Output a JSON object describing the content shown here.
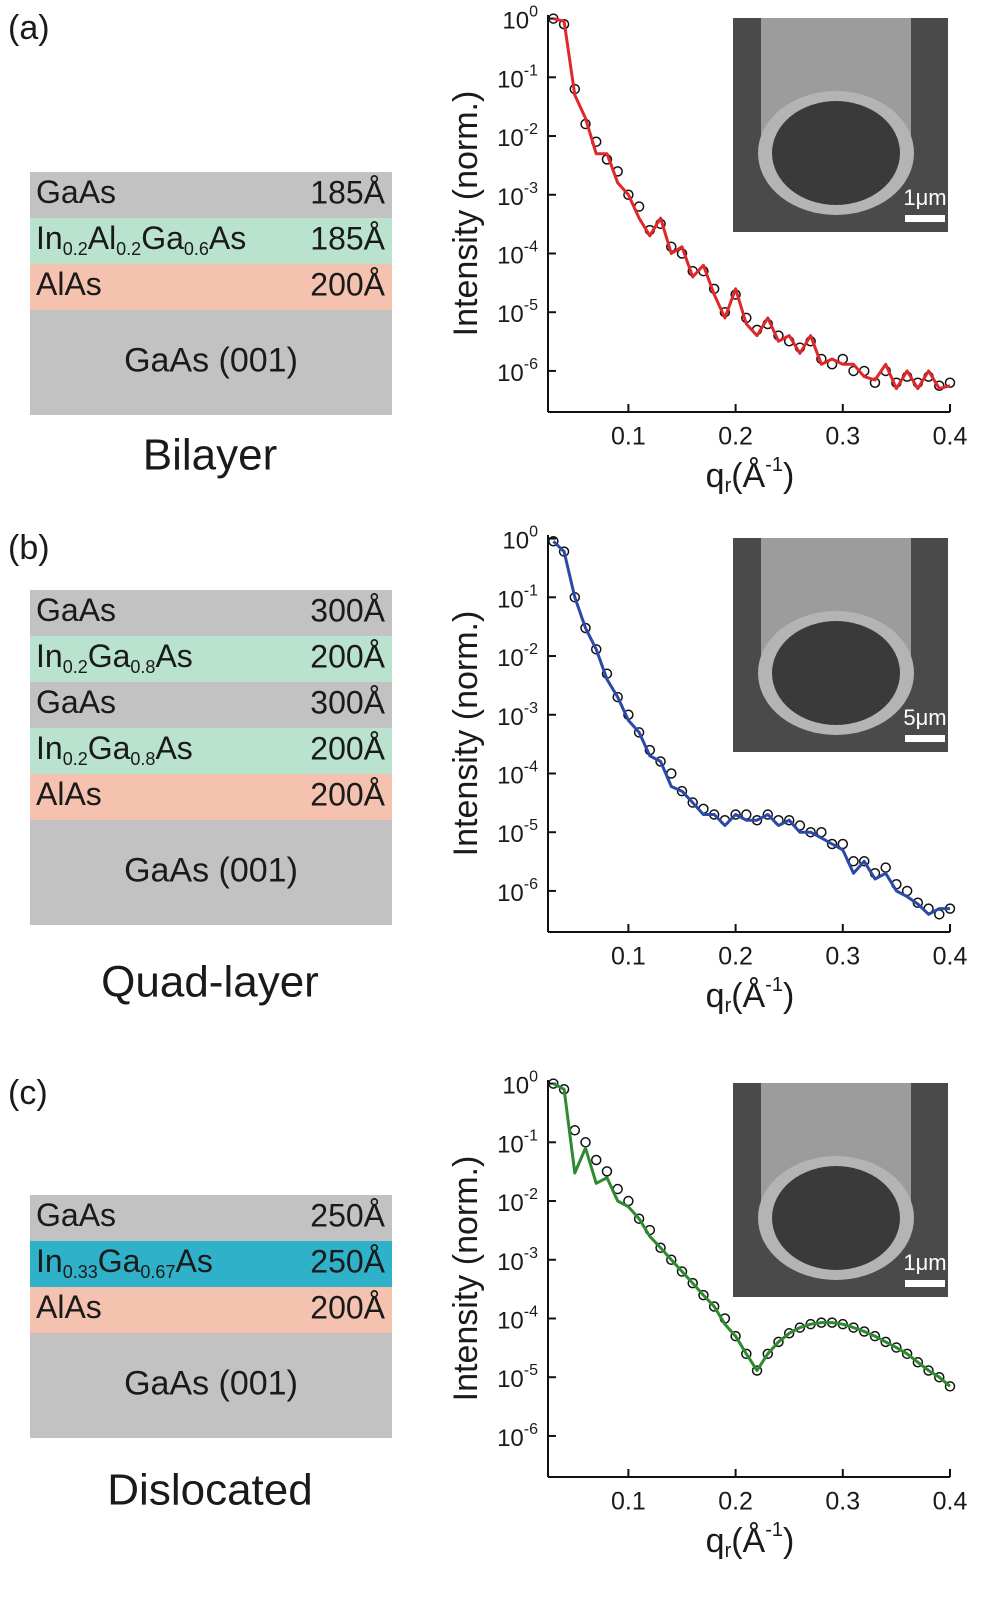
{
  "panels": [
    {
      "label": "(a)",
      "caption": "Bilayer",
      "layers": [
        {
          "name": [
            "GaAs"
          ],
          "thickness": "185Å",
          "color": "#c2c2c2"
        },
        {
          "name": [
            "In",
            "0.2",
            "Al",
            "0.2",
            "Ga",
            "0.6",
            "As"
          ],
          "thickness": "185Å",
          "color": "#b9e2cf"
        },
        {
          "name": [
            "AlAs"
          ],
          "thickness": "200Å",
          "color": "#f4c2ae"
        },
        {
          "name": [
            "GaAs (001)"
          ],
          "color": "#c2c2c2"
        }
      ]
    },
    {
      "label": "(b)",
      "caption": "Quad-layer",
      "layers": [
        {
          "name": [
            "GaAs"
          ],
          "thickness": "300Å",
          "color": "#c2c2c2"
        },
        {
          "name": [
            "In",
            "0.2",
            "Ga",
            "0.8",
            "As"
          ],
          "thickness": "200Å",
          "color": "#b9e2cf"
        },
        {
          "name": [
            "GaAs"
          ],
          "thickness": "300Å",
          "color": "#c2c2c2"
        },
        {
          "name": [
            "In",
            "0.2",
            "Ga",
            "0.8",
            "As"
          ],
          "thickness": "200Å",
          "color": "#b9e2cf"
        },
        {
          "name": [
            "AlAs"
          ],
          "thickness": "200Å",
          "color": "#f4c2ae"
        },
        {
          "name": [
            "GaAs (001)"
          ],
          "color": "#c2c2c2"
        }
      ]
    },
    {
      "label": "(c)",
      "caption": "Dislocated",
      "layers": [
        {
          "name": [
            "GaAs"
          ],
          "thickness": "250Å",
          "color": "#c2c2c2"
        },
        {
          "name": [
            "In",
            "0.33",
            "Ga",
            "0.67",
            "As"
          ],
          "thickness": "250Å",
          "color": "#2fb2c9"
        },
        {
          "name": [
            "AlAs"
          ],
          "thickness": "200Å",
          "color": "#f4c2ae"
        },
        {
          "name": [
            "GaAs (001)"
          ],
          "color": "#c2c2c2"
        }
      ]
    }
  ],
  "chart_data": [
    {
      "type": "line",
      "ylabel": "Intensity (norm.)",
      "xlabel": {
        "base": "q",
        "sub": "r",
        "open": "(Å",
        "sup": "-1",
        "close": ")"
      },
      "inset_scale": "1μm",
      "log_y": true,
      "xlim": [
        0.025,
        0.4
      ],
      "ylim": [
        2e-07,
        1.15
      ],
      "xticks": [
        0.1,
        0.2,
        0.3,
        0.4
      ],
      "yticks": [
        {
          "value": 1,
          "label": "10",
          "exp": "0"
        },
        {
          "value": 0.1,
          "label": "10",
          "exp": "-1"
        },
        {
          "value": 0.01,
          "label": "10",
          "exp": "-2"
        },
        {
          "value": 0.001,
          "label": "10",
          "exp": "-3"
        },
        {
          "value": 0.0001,
          "label": "10",
          "exp": "-4"
        },
        {
          "value": 1e-05,
          "label": "10",
          "exp": "-5"
        },
        {
          "value": 1e-06,
          "label": "10",
          "exp": "-6"
        }
      ],
      "x": [
        0.03,
        0.04,
        0.05,
        0.06,
        0.07,
        0.08,
        0.09,
        0.1,
        0.11,
        0.12,
        0.13,
        0.14,
        0.15,
        0.16,
        0.17,
        0.18,
        0.19,
        0.2,
        0.21,
        0.22,
        0.23,
        0.24,
        0.25,
        0.26,
        0.27,
        0.28,
        0.29,
        0.3,
        0.31,
        0.32,
        0.33,
        0.34,
        0.35,
        0.36,
        0.37,
        0.38,
        0.39,
        0.4
      ],
      "series": [
        {
          "marker": "open-circle",
          "color": "#111111",
          "values": [
            1.0,
            0.8,
            0.063,
            0.016,
            0.008,
            0.004,
            0.0025,
            0.001,
            0.00063,
            0.00025,
            0.00032,
            0.00013,
            0.0001,
            5e-05,
            5e-05,
            2.5e-05,
            1e-05,
            2e-05,
            8e-06,
            5e-06,
            6.3e-06,
            4e-06,
            3.2e-06,
            2.5e-06,
            3.2e-06,
            1.6e-06,
            1.3e-06,
            1.6e-06,
            1e-06,
            1e-06,
            6.3e-07,
            1e-06,
            6.3e-07,
            8e-07,
            6.3e-07,
            8e-07,
            5.6e-07,
            6.3e-07
          ]
        },
        {
          "marker": "none",
          "color": "#e0282a",
          "values": [
            1.0,
            0.9,
            0.05,
            0.02,
            0.005,
            0.005,
            0.0016,
            0.001,
            0.0004,
            0.0002,
            0.0004,
            0.0001,
            0.00013,
            4e-05,
            6.3e-05,
            2e-05,
            8e-06,
            2.5e-05,
            6.3e-06,
            4e-06,
            8e-06,
            3.2e-06,
            4e-06,
            2e-06,
            4e-06,
            1.3e-06,
            1.6e-06,
            1.3e-06,
            1.3e-06,
            8e-07,
            7e-07,
            1.3e-06,
            5e-07,
            1e-06,
            5e-07,
            1e-06,
            5e-07,
            5.6e-07
          ]
        }
      ]
    },
    {
      "type": "line",
      "ylabel": "Intensity (norm.)",
      "xlabel": {
        "base": "q",
        "sub": "r",
        "open": "(Å",
        "sup": "-1",
        "close": ")"
      },
      "inset_scale": "5μm",
      "log_y": true,
      "xlim": [
        0.025,
        0.4
      ],
      "ylim": [
        2e-07,
        1.15
      ],
      "xticks": [
        0.1,
        0.2,
        0.3,
        0.4
      ],
      "yticks": [
        {
          "value": 1,
          "label": "10",
          "exp": "0"
        },
        {
          "value": 0.1,
          "label": "10",
          "exp": "-1"
        },
        {
          "value": 0.01,
          "label": "10",
          "exp": "-2"
        },
        {
          "value": 0.001,
          "label": "10",
          "exp": "-3"
        },
        {
          "value": 0.0001,
          "label": "10",
          "exp": "-4"
        },
        {
          "value": 1e-05,
          "label": "10",
          "exp": "-5"
        },
        {
          "value": 1e-06,
          "label": "10",
          "exp": "-6"
        }
      ],
      "x": [
        0.03,
        0.04,
        0.05,
        0.06,
        0.07,
        0.08,
        0.09,
        0.1,
        0.11,
        0.12,
        0.13,
        0.14,
        0.15,
        0.16,
        0.17,
        0.18,
        0.19,
        0.2,
        0.21,
        0.22,
        0.23,
        0.24,
        0.25,
        0.26,
        0.27,
        0.28,
        0.29,
        0.3,
        0.31,
        0.32,
        0.33,
        0.34,
        0.35,
        0.36,
        0.37,
        0.38,
        0.39,
        0.4
      ],
      "series": [
        {
          "marker": "open-circle",
          "color": "#111111",
          "values": [
            0.9,
            0.6,
            0.1,
            0.03,
            0.013,
            0.005,
            0.002,
            0.001,
            0.0005,
            0.00025,
            0.00016,
            0.0001,
            5e-05,
            3.2e-05,
            2.5e-05,
            2e-05,
            1.6e-05,
            2e-05,
            2e-05,
            1.6e-05,
            2e-05,
            1.6e-05,
            1.6e-05,
            1.3e-05,
            1e-05,
            1e-05,
            6.3e-06,
            6.3e-06,
            3.2e-06,
            3.2e-06,
            2e-06,
            2.5e-06,
            1.3e-06,
            1e-06,
            6.3e-07,
            5e-07,
            4e-07,
            5e-07
          ]
        },
        {
          "marker": "none",
          "color": "#2b49a6",
          "values": [
            0.9,
            0.6,
            0.1,
            0.03,
            0.013,
            0.004,
            0.002,
            0.0008,
            0.0005,
            0.0002,
            0.00016,
            6e-05,
            5e-05,
            3.2e-05,
            2e-05,
            2e-05,
            1.3e-05,
            2e-05,
            1.6e-05,
            1.6e-05,
            2e-05,
            1.3e-05,
            1.6e-05,
            1e-05,
            1e-05,
            8e-06,
            6.3e-06,
            5e-06,
            2e-06,
            3.2e-06,
            1.6e-06,
            2e-06,
            1e-06,
            8e-07,
            6e-07,
            4e-07,
            5e-07,
            5e-07
          ]
        }
      ]
    },
    {
      "type": "line",
      "ylabel": "Intensity (norm.)",
      "xlabel": {
        "base": "q",
        "sub": "r",
        "open": "(Å",
        "sup": "-1",
        "close": ")"
      },
      "inset_scale": "1μm",
      "log_y": true,
      "xlim": [
        0.025,
        0.4
      ],
      "ylim": [
        2e-07,
        1.15
      ],
      "xticks": [
        0.1,
        0.2,
        0.3,
        0.4
      ],
      "yticks": [
        {
          "value": 1,
          "label": "10",
          "exp": "0"
        },
        {
          "value": 0.1,
          "label": "10",
          "exp": "-1"
        },
        {
          "value": 0.01,
          "label": "10",
          "exp": "-2"
        },
        {
          "value": 0.001,
          "label": "10",
          "exp": "-3"
        },
        {
          "value": 0.0001,
          "label": "10",
          "exp": "-4"
        },
        {
          "value": 1e-05,
          "label": "10",
          "exp": "-5"
        },
        {
          "value": 1e-06,
          "label": "10",
          "exp": "-6"
        }
      ],
      "x": [
        0.03,
        0.04,
        0.05,
        0.06,
        0.07,
        0.08,
        0.09,
        0.1,
        0.11,
        0.12,
        0.13,
        0.14,
        0.15,
        0.16,
        0.17,
        0.18,
        0.19,
        0.2,
        0.21,
        0.22,
        0.23,
        0.24,
        0.25,
        0.26,
        0.27,
        0.28,
        0.29,
        0.3,
        0.31,
        0.32,
        0.33,
        0.34,
        0.35,
        0.36,
        0.37,
        0.38,
        0.39,
        0.4
      ],
      "series": [
        {
          "marker": "open-circle",
          "color": "#111111",
          "values": [
            1,
            0.8,
            0.16,
            0.1,
            0.05,
            0.032,
            0.016,
            0.01,
            0.005,
            0.0032,
            0.0016,
            0.001,
            0.00063,
            0.0004,
            0.00025,
            0.00016,
            0.0001,
            5e-05,
            2.5e-05,
            1.3e-05,
            2.5e-05,
            4e-05,
            5.6e-05,
            7e-05,
            8e-05,
            8.5e-05,
            8.5e-05,
            8e-05,
            7e-05,
            6e-05,
            5e-05,
            4e-05,
            3.2e-05,
            2.5e-05,
            1.8e-05,
            1.3e-05,
            1e-05,
            7e-06
          ]
        },
        {
          "marker": "none",
          "color": "#2d8a2f",
          "values": [
            1,
            0.8,
            0.03,
            0.08,
            0.02,
            0.025,
            0.01,
            0.008,
            0.005,
            0.0025,
            0.0016,
            0.001,
            0.00063,
            0.0004,
            0.00025,
            0.00016,
            8e-05,
            5e-05,
            2.5e-05,
            1.3e-05,
            2.5e-05,
            4e-05,
            5.6e-05,
            7e-05,
            8e-05,
            8.5e-05,
            8.5e-05,
            8e-05,
            7e-05,
            6e-05,
            5e-05,
            4e-05,
            3.2e-05,
            2.5e-05,
            1.8e-05,
            1.3e-05,
            1e-05,
            7e-06
          ]
        }
      ]
    }
  ]
}
